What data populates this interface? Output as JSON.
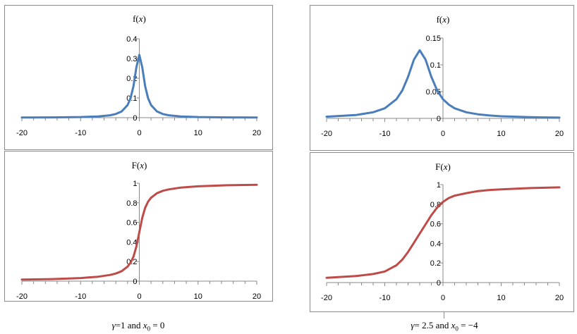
{
  "charts": {
    "tl": {
      "title_base": "f(",
      "title_var": "x",
      "title_end": ")",
      "xlim": [
        -20,
        20
      ],
      "ylim": [
        0,
        0.4
      ],
      "xticks": [
        "-20",
        "-10",
        "0",
        "10",
        "20"
      ],
      "yticks": [
        "0",
        "0.1",
        "0.2",
        "0.3",
        "0.4"
      ]
    },
    "tr": {
      "title_base": "f(",
      "title_var": "x",
      "title_end": ")",
      "xlim": [
        -20,
        20
      ],
      "ylim": [
        0,
        0.15
      ],
      "xticks": [
        "-20",
        "-10",
        "0",
        "10",
        "20"
      ],
      "yticks": [
        "0",
        "0.05",
        "0.1",
        "0.15"
      ]
    },
    "bl": {
      "title_base": "F(",
      "title_var": "x",
      "title_end": ")",
      "xlim": [
        -20,
        20
      ],
      "ylim": [
        0,
        1
      ],
      "xticks": [
        "-20",
        "-10",
        "0",
        "10",
        "20"
      ],
      "yticks": [
        "0",
        "0.2",
        "0.4",
        "0.6",
        "0.8",
        "1"
      ]
    },
    "br": {
      "title_base": "F(",
      "title_var": "x",
      "title_end": ")",
      "xlim": [
        -20,
        20
      ],
      "ylim": [
        0,
        1
      ],
      "xticks": [
        "-20",
        "-10",
        "0",
        "10",
        "20"
      ],
      "yticks": [
        "0",
        "0.2",
        "0.4",
        "0.6",
        "0.8",
        "1"
      ]
    }
  },
  "captions": {
    "left": {
      "gamma": "γ",
      "gamma_eq": "=1",
      "and": "and",
      "x": "x",
      "sub": "0",
      "x_eq": "= 0"
    },
    "right": {
      "gamma": "γ",
      "gamma_eq": "= 2.5",
      "and": "and",
      "x": "x",
      "sub": "0",
      "x_eq": "= −4"
    }
  },
  "chart_data": [
    {
      "type": "line",
      "title": "f(x)",
      "xlim": [
        -20,
        20
      ],
      "ylim": [
        0,
        0.4
      ],
      "series": [
        {
          "color": "#4a7ebb",
          "x": [
            -20,
            -15,
            -10,
            -7,
            -5,
            -4,
            -3,
            -2,
            -1.5,
            -1,
            -0.5,
            0,
            0.5,
            1,
            1.5,
            2,
            3,
            4,
            5,
            7,
            10,
            15,
            20
          ],
          "y": [
            0.0008,
            0.0014,
            0.0032,
            0.0064,
            0.0122,
            0.0187,
            0.0318,
            0.0637,
            0.0979,
            0.1592,
            0.2546,
            0.3183,
            0.2546,
            0.1592,
            0.0979,
            0.0637,
            0.0318,
            0.0187,
            0.0122,
            0.0064,
            0.0032,
            0.0014,
            0.0008
          ]
        }
      ]
    },
    {
      "type": "line",
      "title": "f(x)",
      "xlim": [
        -20,
        20
      ],
      "ylim": [
        0,
        0.15
      ],
      "series": [
        {
          "color": "#4a7ebb",
          "x": [
            -20,
            -15,
            -12,
            -10,
            -8,
            -7,
            -6,
            -5,
            -4,
            -3,
            -2,
            -1,
            0,
            1,
            2,
            4,
            6,
            8,
            10,
            15,
            20
          ],
          "y": [
            0.0031,
            0.0062,
            0.0114,
            0.0188,
            0.0358,
            0.052,
            0.0776,
            0.1097,
            0.1273,
            0.1097,
            0.0776,
            0.052,
            0.0358,
            0.0257,
            0.0188,
            0.0114,
            0.0076,
            0.0054,
            0.004,
            0.0022,
            0.0014
          ]
        }
      ]
    },
    {
      "type": "line",
      "title": "F(x)",
      "xlim": [
        -20,
        20
      ],
      "ylim": [
        0,
        1
      ],
      "series": [
        {
          "color": "#be4b48",
          "x": [
            -20,
            -15,
            -10,
            -7,
            -5,
            -4,
            -3,
            -2,
            -1.5,
            -1,
            -0.5,
            0,
            0.5,
            1,
            1.5,
            2,
            3,
            4,
            5,
            7,
            10,
            15,
            20
          ],
          "y": [
            0.016,
            0.021,
            0.032,
            0.045,
            0.063,
            0.078,
            0.102,
            0.148,
            0.187,
            0.25,
            0.352,
            0.5,
            0.648,
            0.75,
            0.813,
            0.852,
            0.898,
            0.922,
            0.937,
            0.955,
            0.968,
            0.979,
            0.984
          ]
        }
      ]
    },
    {
      "type": "line",
      "title": "F(x)",
      "xlim": [
        -20,
        20
      ],
      "ylim": [
        0,
        1
      ],
      "series": [
        {
          "color": "#be4b48",
          "x": [
            -20,
            -15,
            -12,
            -10,
            -8,
            -7,
            -6,
            -5,
            -4,
            -3,
            -2,
            -1,
            0,
            1,
            2,
            4,
            6,
            8,
            10,
            15,
            20
          ],
          "y": [
            0.049,
            0.066,
            0.087,
            0.113,
            0.176,
            0.234,
            0.312,
            0.406,
            0.5,
            0.594,
            0.688,
            0.766,
            0.824,
            0.863,
            0.887,
            0.913,
            0.934,
            0.945,
            0.952,
            0.965,
            0.972
          ]
        }
      ]
    }
  ]
}
